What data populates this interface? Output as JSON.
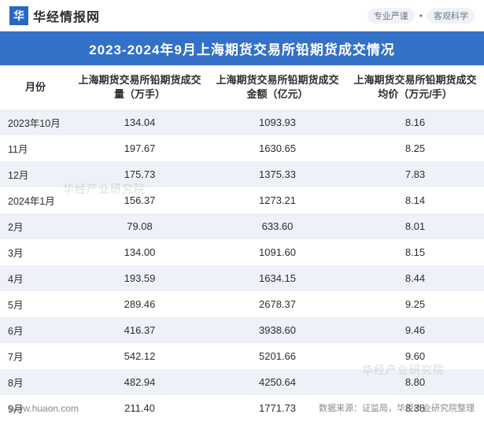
{
  "header": {
    "logo_text": "华",
    "site_name": "华经情报网",
    "tag1": "专业严谨",
    "dot": "•",
    "tag2": "客观科学"
  },
  "title": "2023-2024年9月上海期货交易所铅期货成交情况",
  "table": {
    "columns": [
      "月份",
      "上海期货交易所铅期货成交量（万手）",
      "上海期货交易所铅期货成交金额（亿元）",
      "上海期货交易所铅期货成交均价（万元/手）"
    ],
    "col_widths": [
      "90px",
      "175px",
      "175px",
      "175px"
    ],
    "header_fontsize": 13,
    "header_color": "#2d2d2d",
    "body_fontsize": 13,
    "body_color": "#2d2d2d",
    "alt_row_bg": "#eef2f8",
    "row_bg": "#ffffff",
    "rows": [
      {
        "month": "2023年10月",
        "volume": "134.04",
        "amount": "1093.93",
        "avg": "8.16"
      },
      {
        "month": "11月",
        "volume": "197.67",
        "amount": "1630.65",
        "avg": "8.25"
      },
      {
        "month": "12月",
        "volume": "175.73",
        "amount": "1375.33",
        "avg": "7.83"
      },
      {
        "month": "2024年1月",
        "volume": "156.37",
        "amount": "1273.21",
        "avg": "8.14"
      },
      {
        "month": "2月",
        "volume": "79.08",
        "amount": "633.60",
        "avg": "8.01"
      },
      {
        "month": "3月",
        "volume": "134.00",
        "amount": "1091.60",
        "avg": "8.15"
      },
      {
        "month": "4月",
        "volume": "193.59",
        "amount": "1634.15",
        "avg": "8.44"
      },
      {
        "month": "5月",
        "volume": "289.46",
        "amount": "2678.37",
        "avg": "9.25"
      },
      {
        "month": "6月",
        "volume": "416.37",
        "amount": "3938.60",
        "avg": "9.46"
      },
      {
        "month": "7月",
        "volume": "542.12",
        "amount": "5201.66",
        "avg": "9.60"
      },
      {
        "month": "8月",
        "volume": "482.94",
        "amount": "4250.64",
        "avg": "8.80"
      },
      {
        "month": "9月",
        "volume": "211.40",
        "amount": "1771.73",
        "avg": "8.38"
      }
    ]
  },
  "footer": {
    "url": "www.huaon.com",
    "attribution": "数据来源：证监局，华经产业研究院整理"
  },
  "watermark": {
    "text": "华经产业研究院"
  },
  "colors": {
    "title_bg": "#3371c9",
    "title_fg": "#ffffff",
    "logo_bg": "#2966c4",
    "border": "#e5e5e5",
    "header_tag": "#6a7a8a",
    "footer_text": "#8a8a8a",
    "watermark": "rgba(150,150,150,0.32)"
  }
}
